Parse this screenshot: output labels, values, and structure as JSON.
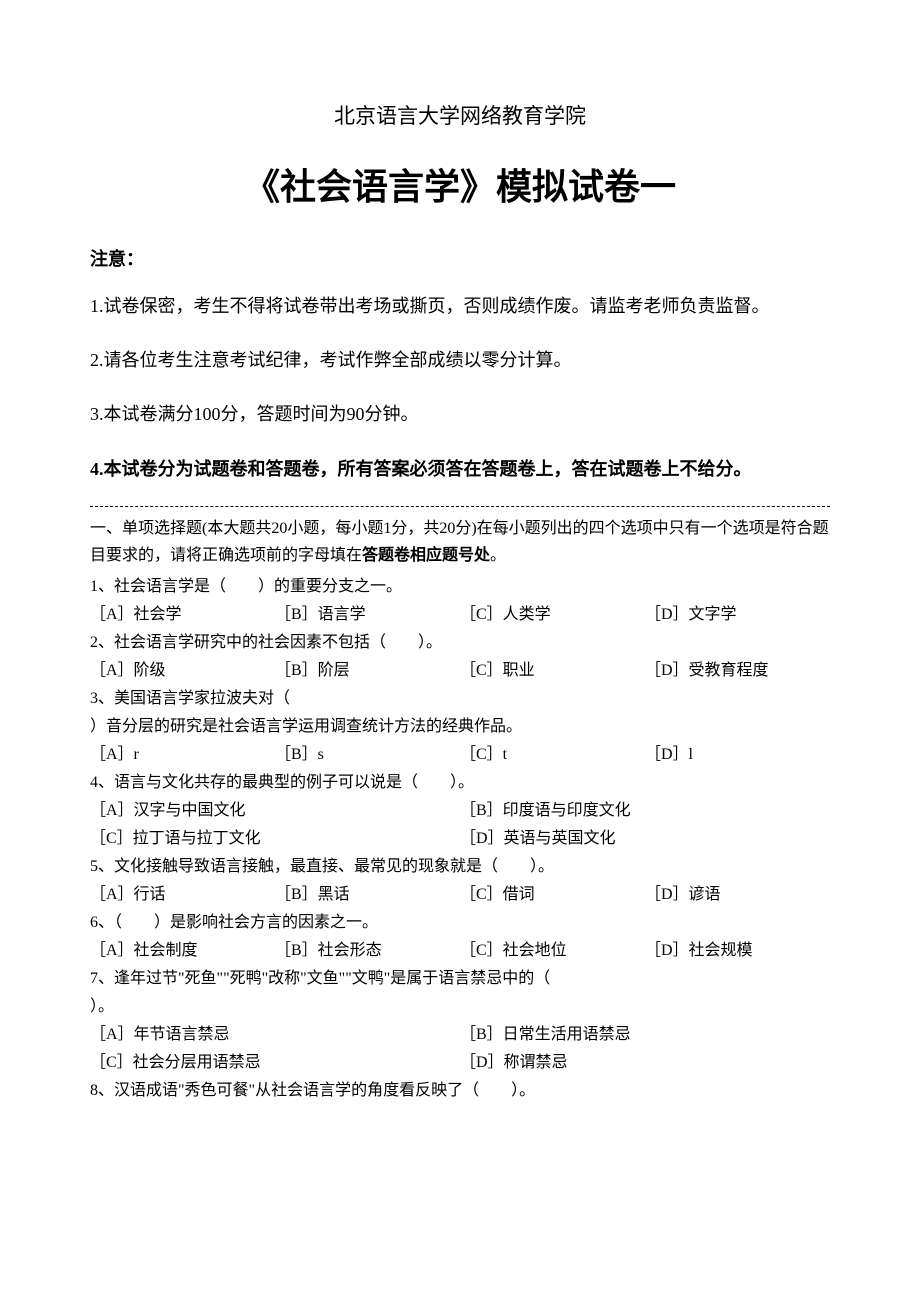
{
  "institution": "北京语言大学网络教育学院",
  "title": "《社会语言学》模拟试卷一",
  "notice": {
    "header": "注意：",
    "items": [
      {
        "text": "1.试卷保密，考生不得将试卷带出考场或撕页，否则成绩作废。请监考老师负责监督。",
        "bold": false
      },
      {
        "text": "2.请各位考生注意考试纪律，考试作弊全部成绩以零分计算。",
        "bold": false
      },
      {
        "text": "3.本试卷满分100分，答题时间为90分钟。",
        "bold": false
      },
      {
        "text": "4.本试卷分为试题卷和答题卷，所有答案必须答在答题卷上，答在试题卷上不给分。",
        "bold": true
      }
    ]
  },
  "section1": {
    "intro_pre": "一、单项选择题(本大题共20小题，每小题1分，共20分)在每小题列出的四个选项中只有一个选项是符合题目要求的，请将正确选项前的字母填在",
    "intro_bold": "答题卷相应题号处",
    "intro_post": "。"
  },
  "questions": [
    {
      "text": "1、社会语言学是（　　）的重要分支之一。",
      "layout": "opt-4col",
      "options": [
        "［A］社会学",
        "［B］语言学",
        "［C］人类学",
        "［D］文字学"
      ]
    },
    {
      "text": "2、社会语言学研究中的社会因素不包括（　　）。",
      "layout": "opt-4col",
      "options": [
        "［A］阶级",
        "［B］阶层",
        "［C］职业",
        "［D］受教育程度"
      ]
    },
    {
      "text": "3、美国语言学家拉波夫对（\n）音分层的研究是社会语言学运用调查统计方法的经典作品。",
      "layout": "opt-4col",
      "options": [
        "［A］r",
        "［B］s",
        "［C］t",
        "［D］l"
      ]
    },
    {
      "text": "4、语言与文化共存的最典型的例子可以说是（　　）。",
      "layout": "opt-2col",
      "options": [
        "［A］汉字与中国文化",
        "［B］印度语与印度文化",
        "［C］拉丁语与拉丁文化",
        "［D］英语与英国文化"
      ]
    },
    {
      "text": "5、文化接触导致语言接触，最直接、最常见的现象就是（　　）。",
      "layout": "opt-4col",
      "options": [
        "［A］行话",
        "［B］黑话",
        "［C］借词",
        "［D］谚语"
      ]
    },
    {
      "text": "6、（　　）是影响社会方言的因素之一。",
      "layout": "opt-4col",
      "options": [
        "［A］社会制度",
        "［B］社会形态",
        "［C］社会地位",
        "［D］社会规模"
      ]
    },
    {
      "text": "7、逢年过节\"死鱼\"\"死鸭\"改称\"文鱼\"\"文鸭\"是属于语言禁忌中的（\n）。",
      "layout": "opt-2col",
      "options": [
        "［A］年节语言禁忌",
        "［B］日常生活用语禁忌",
        "［C］社会分层用语禁忌",
        "［D］称谓禁忌"
      ]
    },
    {
      "text": "8、汉语成语\"秀色可餐\"从社会语言学的角度看反映了（　　）。",
      "layout": "none",
      "options": []
    }
  ]
}
